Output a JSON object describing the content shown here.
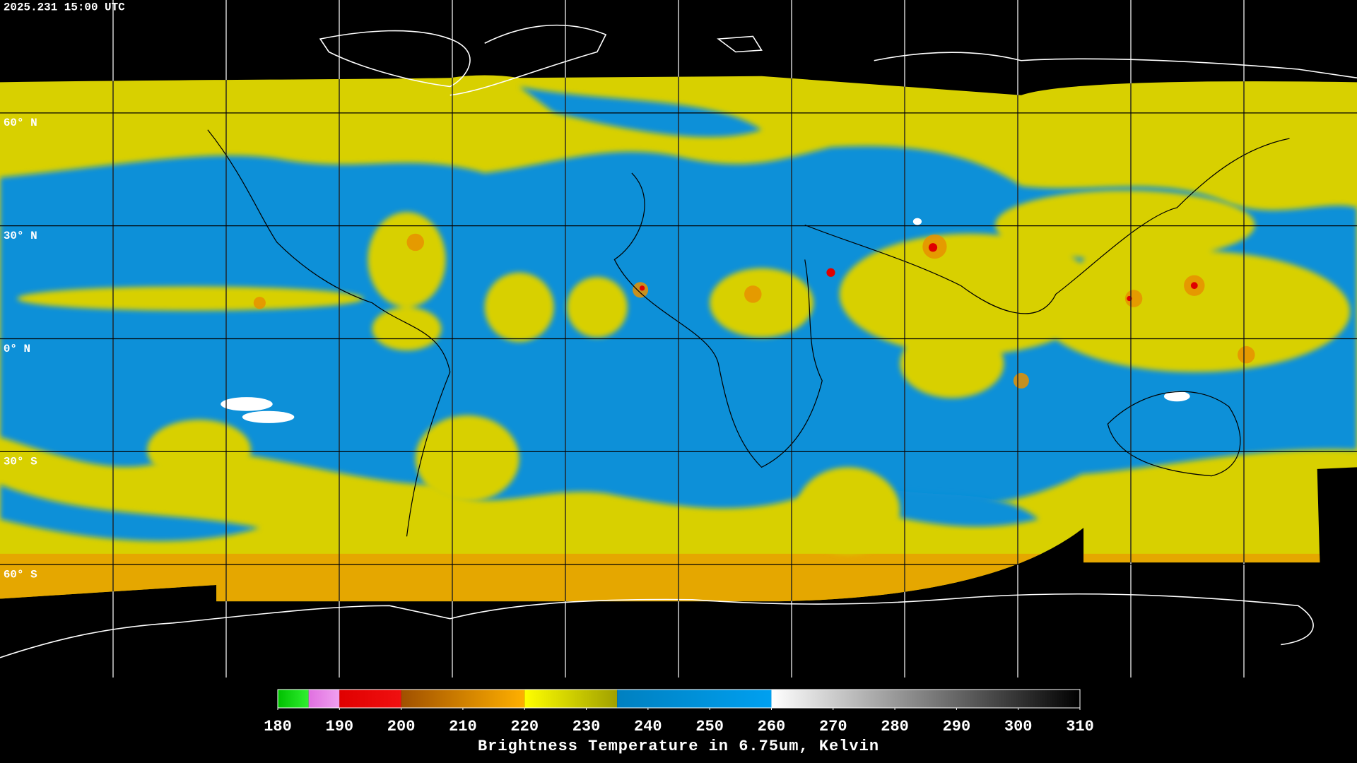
{
  "header": {
    "timestamp": "2025.231 15:00 UTC"
  },
  "map": {
    "lat_range": [
      -90,
      90
    ],
    "lat_lines": [
      {
        "value": 60,
        "label": "60° N"
      },
      {
        "value": 30,
        "label": "30° N"
      },
      {
        "value": 0,
        "label": "0° N"
      },
      {
        "value": -30,
        "label": "30° S"
      },
      {
        "value": -60,
        "label": "60° S"
      }
    ]
  },
  "colorbar": {
    "label": "Brightness Temperature in 6.75um, Kelvin",
    "range": [
      180,
      310
    ],
    "ticks": [
      180,
      190,
      200,
      210,
      220,
      230,
      240,
      250,
      260,
      270,
      280,
      290,
      300,
      310
    ],
    "segments": [
      {
        "from": 180,
        "to": 185,
        "colors": [
          "#00c000",
          "#30f030"
        ]
      },
      {
        "from": 185,
        "to": 190,
        "colors": [
          "#e070e0",
          "#f0a0f0"
        ]
      },
      {
        "from": 190,
        "to": 200,
        "colors": [
          "#e00000",
          "#f01010"
        ]
      },
      {
        "from": 200,
        "to": 220,
        "colors": [
          "#a05000",
          "#ffb000"
        ]
      },
      {
        "from": 220,
        "to": 235,
        "colors": [
          "#ffff00",
          "#a0a000"
        ]
      },
      {
        "from": 235,
        "to": 260,
        "colors": [
          "#0080c0",
          "#00a0f0"
        ]
      },
      {
        "from": 260,
        "to": 310,
        "colors": [
          "#ffffff",
          "#000000"
        ]
      }
    ]
  }
}
